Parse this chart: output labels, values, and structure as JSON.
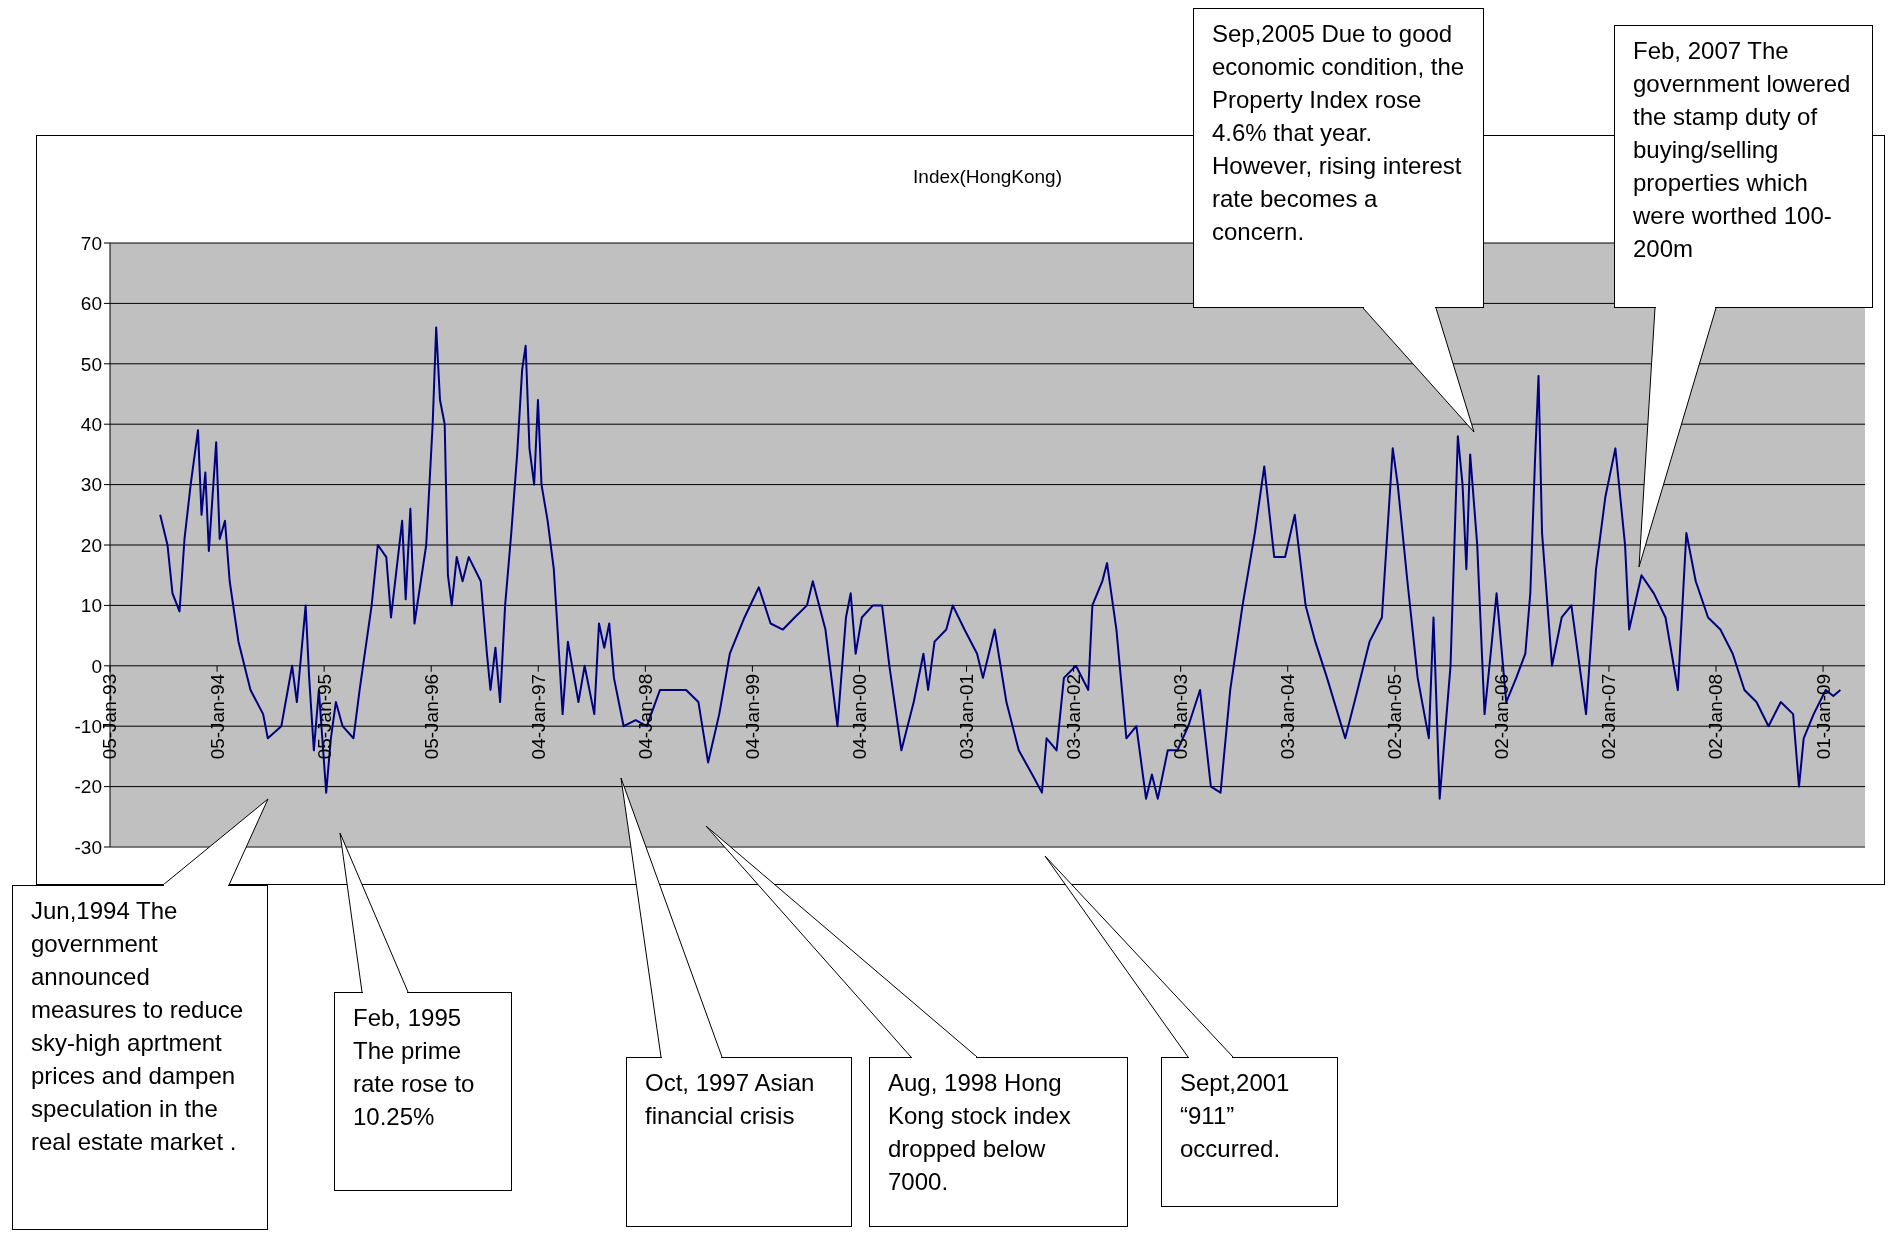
{
  "chart_data": {
    "type": "line",
    "title": "Index(HongKong)",
    "x": [
      "1993-06-25",
      "1993-07-20",
      "1993-08-06",
      "1993-08-30",
      "1993-09-16",
      "1993-10-07",
      "1993-11-01",
      "1993-11-13",
      "1993-11-26",
      "1993-12-08",
      "1994-01-02",
      "1994-01-14",
      "1994-02-01",
      "1994-02-17",
      "1994-03-19",
      "1994-04-29",
      "1994-06-11",
      "1994-06-27",
      "1994-08-12",
      "1994-09-18",
      "1994-10-04",
      "1994-11-03",
      "1994-11-15",
      "1994-12-01",
      "1994-12-18",
      "1995-01-12",
      "1995-01-28",
      "1995-02-14",
      "1995-03-09",
      "1995-04-15",
      "1995-05-06",
      "1995-06-16",
      "1995-07-07",
      "1995-08-05",
      "1995-08-21",
      "1995-09-28",
      "1995-10-10",
      "1995-10-26",
      "1995-11-09",
      "1995-12-19",
      "1996-01-10",
      "1996-01-22",
      "1996-02-04",
      "1996-02-20",
      "1996-03-02",
      "1996-03-15",
      "1996-04-01",
      "1996-04-21",
      "1996-05-12",
      "1996-06-22",
      "1996-07-13",
      "1996-07-25",
      "1996-08-11",
      "1996-08-27",
      "1996-09-13",
      "1996-10-04",
      "1996-10-24",
      "1996-11-10",
      "1996-11-22",
      "1996-12-05",
      "1996-12-21",
      "1997-01-03",
      "1997-01-15",
      "1997-02-05",
      "1997-02-26",
      "1997-03-12",
      "1997-03-28",
      "1997-04-15",
      "1997-05-21",
      "1997-06-11",
      "1997-07-14",
      "1997-07-30",
      "1997-08-17",
      "1997-09-03",
      "1997-09-19",
      "1997-10-22",
      "1997-12-02",
      "1998-01-09",
      "1998-02-23",
      "1998-04-12",
      "1998-05-23",
      "1998-07-04",
      "1998-08-06",
      "1998-09-13",
      "1998-10-19",
      "1998-12-08",
      "1999-01-26",
      "1999-03-07",
      "1999-04-18",
      "1999-05-28",
      "1999-07-09",
      "1999-07-29",
      "1999-09-10",
      "1999-10-21",
      "1999-11-19",
      "1999-12-05",
      "1999-12-22",
      "2000-01-12",
      "2000-02-19",
      "2000-03-21",
      "2000-04-15",
      "2000-05-26",
      "2000-07-07",
      "2000-08-09",
      "2000-08-25",
      "2000-09-16",
      "2000-10-26",
      "2000-11-17",
      "2000-12-27",
      "2001-02-08",
      "2001-02-28",
      "2001-04-09",
      "2001-05-19",
      "2001-06-30",
      "2001-08-15",
      "2001-09-17",
      "2001-10-03",
      "2001-11-06",
      "2001-12-01",
      "2002-01-11",
      "2002-02-22",
      "2002-03-08",
      "2002-04-11",
      "2002-04-27",
      "2002-05-29",
      "2002-07-02",
      "2002-08-05",
      "2002-09-07",
      "2002-09-27",
      "2002-10-17",
      "2002-11-20",
      "2002-12-23",
      "2003-01-29",
      "2003-03-10",
      "2003-04-16",
      "2003-05-19",
      "2003-06-21",
      "2003-08-02",
      "2003-09-13",
      "2003-10-15",
      "2003-11-18",
      "2003-12-25",
      "2004-01-27",
      "2004-03-04",
      "2004-04-06",
      "2004-05-16",
      "2004-07-17",
      "2004-08-28",
      "2004-10-08",
      "2004-11-19",
      "2004-12-26",
      "2005-01-12",
      "2005-02-14",
      "2005-03-21",
      "2005-04-28",
      "2005-05-14",
      "2005-06-04",
      "2005-07-11",
      "2005-08-05",
      "2005-08-21",
      "2005-09-03",
      "2005-09-16",
      "2005-10-10",
      "2005-11-04",
      "2005-11-29",
      "2005-12-15",
      "2006-01-17",
      "2006-02-20",
      "2006-03-23",
      "2006-04-09",
      "2006-04-25",
      "2006-05-07",
      "2006-05-19",
      "2006-06-22",
      "2006-07-25",
      "2006-08-27",
      "2006-10-16",
      "2006-11-19",
      "2006-12-21",
      "2007-01-24",
      "2007-02-26",
      "2007-03-12",
      "2007-04-23",
      "2007-06-04",
      "2007-07-14",
      "2007-08-25",
      "2007-09-23",
      "2007-10-25",
      "2007-12-06",
      "2008-01-17",
      "2008-02-28",
      "2008-04-08",
      "2008-05-19",
      "2008-06-29",
      "2008-08-10",
      "2008-09-21",
      "2008-10-11",
      "2008-10-27",
      "2008-11-30",
      "2009-01-10",
      "2009-02-05",
      "2009-03-01"
    ],
    "values": [
      25,
      20,
      12,
      9,
      21,
      30,
      39,
      25,
      32,
      19,
      37,
      21,
      24,
      14,
      4,
      -4,
      -8,
      -12,
      -10,
      0,
      -6,
      10,
      -2,
      -14,
      -4,
      -21,
      -12,
      -6,
      -10,
      -12,
      -4,
      10,
      20,
      18,
      8,
      24,
      11,
      26,
      7,
      20,
      40,
      56,
      44,
      40,
      15,
      10,
      18,
      14,
      18,
      14,
      2,
      -4,
      3,
      -6,
      10,
      22,
      35,
      49,
      53,
      36,
      30,
      44,
      30,
      24,
      16,
      5,
      -8,
      4,
      -6,
      0,
      -8,
      7,
      3,
      7,
      -2,
      -10,
      -9,
      -10,
      -4,
      -4,
      -4,
      -6,
      -16,
      -8,
      2,
      8,
      13,
      7,
      6,
      8,
      10,
      14,
      6,
      -10,
      8,
      12,
      2,
      8,
      10,
      10,
      0,
      -14,
      -6,
      2,
      -4,
      4,
      6,
      10,
      6,
      2,
      -2,
      6,
      -6,
      -14,
      -18,
      -21,
      -12,
      -14,
      -2,
      0,
      -4,
      10,
      14,
      17,
      6,
      -12,
      -10,
      -22,
      -18,
      -22,
      -14,
      -14,
      -10,
      -4,
      -20,
      -21,
      -4,
      10,
      22,
      33,
      18,
      18,
      25,
      10,
      4,
      -2,
      -12,
      -4,
      4,
      8,
      36,
      30,
      14,
      -2,
      -12,
      8,
      -22,
      0,
      38,
      30,
      16,
      35,
      20,
      -8,
      4,
      12,
      -6,
      -2,
      2,
      12,
      34,
      48,
      22,
      0,
      8,
      10,
      -8,
      16,
      28,
      36,
      20,
      6,
      15,
      12,
      8,
      -4,
      22,
      14,
      8,
      6,
      2,
      -4,
      -6,
      -10,
      -6,
      -8,
      -20,
      -12,
      -8,
      -4,
      -5,
      -4
    ],
    "color": "#000080",
    "xlim": [
      "1993-01-05",
      "2009-05-24"
    ],
    "xticks": [
      {
        "value": "1993-01-05",
        "label": "05-Jan-93"
      },
      {
        "value": "1994-01-05",
        "label": "05-Jan-94"
      },
      {
        "value": "1995-01-05",
        "label": "05-Jan-95"
      },
      {
        "value": "1996-01-05",
        "label": "05-Jan-96"
      },
      {
        "value": "1997-01-04",
        "label": "04-Jan-97"
      },
      {
        "value": "1998-01-04",
        "label": "04-Jan-98"
      },
      {
        "value": "1999-01-04",
        "label": "04-Jan-99"
      },
      {
        "value": "2000-01-04",
        "label": "04-Jan-00"
      },
      {
        "value": "2001-01-03",
        "label": "03-Jan-01"
      },
      {
        "value": "2002-01-03",
        "label": "03-Jan-02"
      },
      {
        "value": "2003-01-03",
        "label": "03-Jan-03"
      },
      {
        "value": "2004-01-03",
        "label": "03-Jan-04"
      },
      {
        "value": "2005-01-02",
        "label": "02-Jan-05"
      },
      {
        "value": "2006-01-02",
        "label": "02-Jan-06"
      },
      {
        "value": "2007-01-02",
        "label": "02-Jan-07"
      },
      {
        "value": "2008-01-02",
        "label": "02-Jan-08"
      },
      {
        "value": "2009-01-01",
        "label": "01-Jan-09"
      }
    ],
    "ylim": [
      -30,
      70
    ],
    "yticks": [
      -30,
      -20,
      -10,
      0,
      10,
      20,
      30,
      40,
      50,
      60,
      70
    ],
    "grid": "y",
    "annotations": [
      "Jun,1994 The government announced measures to reduce sky-high aprtment prices and dampen speculation in the real estate market .",
      "Feb, 1995 The prime rate rose to 10.25%",
      "Oct, 1997 Asian financial crisis",
      "Aug, 1998 Hong Kong stock index dropped below 7000.",
      "Sept,2001 “911” occurred.",
      "Sep,2005 Due to good economic condition, the Property Index rose 4.6% that year. However, rising interest rate becomes a concern.",
      "Feb, 2007 The government lowered the stamp duty of buying/selling properties which were worthed 100-200m"
    ]
  }
}
